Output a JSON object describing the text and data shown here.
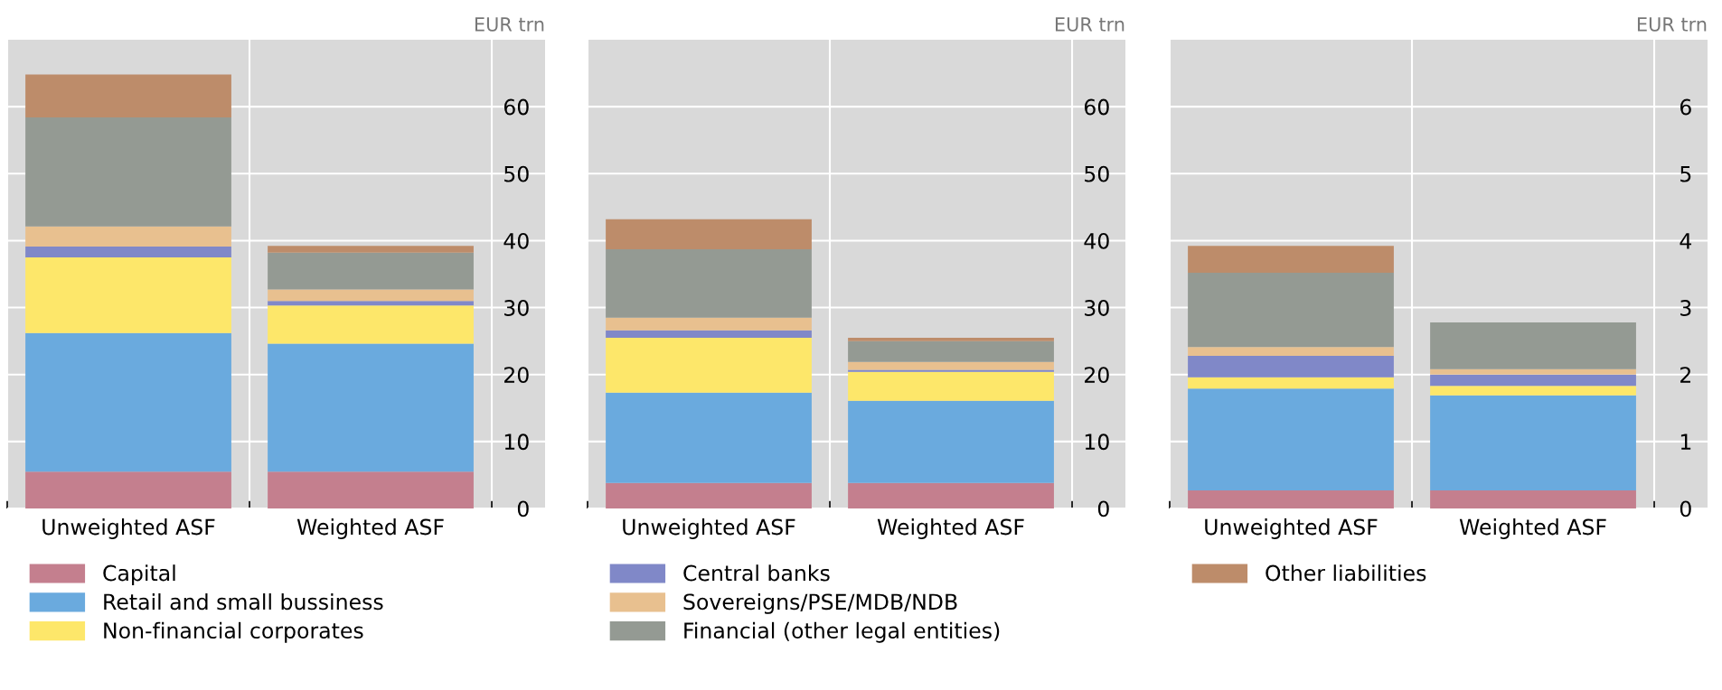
{
  "chart_data": [
    {
      "type": "bar",
      "stacked": true,
      "ylabel": "EUR trn",
      "categories": [
        "Unweighted ASF",
        "Weighted ASF"
      ],
      "ylim": [
        0,
        70
      ],
      "yticks": [
        0,
        10,
        20,
        30,
        40,
        50,
        60
      ],
      "grid": true,
      "legend": "bottom",
      "series": [
        {
          "name": "Capital",
          "color": "#c47f8e",
          "values": [
            5.5,
            5.5
          ]
        },
        {
          "name": "Retail and small bussiness",
          "color": "#6aaade",
          "values": [
            20.7,
            19.1
          ]
        },
        {
          "name": "Non-financial corporates",
          "color": "#fde76a",
          "values": [
            11.3,
            5.7
          ]
        },
        {
          "name": "Central banks",
          "color": "#8088c8",
          "values": [
            1.6,
            0.7
          ]
        },
        {
          "name": "Sovereigns/PSE/MDB/NDB",
          "color": "#e8c08f",
          "values": [
            3.0,
            1.7
          ]
        },
        {
          "name": "Financial (other legal entities)",
          "color": "#949a93",
          "values": [
            16.3,
            5.5
          ]
        },
        {
          "name": "Other liabilities",
          "color": "#bd8c6a",
          "values": [
            6.4,
            1.0
          ]
        }
      ]
    },
    {
      "type": "bar",
      "stacked": true,
      "ylabel": "EUR trn",
      "categories": [
        "Unweighted ASF",
        "Weighted ASF"
      ],
      "ylim": [
        0,
        70
      ],
      "yticks": [
        0,
        10,
        20,
        30,
        40,
        50,
        60
      ],
      "grid": true,
      "series": [
        {
          "color": "#c47f8e",
          "values": [
            3.8,
            3.8
          ]
        },
        {
          "color": "#6aaade",
          "values": [
            13.5,
            12.3
          ]
        },
        {
          "color": "#fde76a",
          "values": [
            8.2,
            4.3
          ]
        },
        {
          "color": "#8088c8",
          "values": [
            1.1,
            0.3
          ]
        },
        {
          "color": "#e8c08f",
          "values": [
            1.9,
            1.2
          ]
        },
        {
          "color": "#949a93",
          "values": [
            10.2,
            3.1
          ]
        },
        {
          "color": "#bd8c6a",
          "values": [
            4.5,
            0.5
          ]
        }
      ]
    },
    {
      "type": "bar",
      "stacked": true,
      "ylabel": "EUR trn",
      "categories": [
        "Unweighted ASF",
        "Weighted ASF"
      ],
      "ylim": [
        0,
        7
      ],
      "yticks": [
        0,
        1,
        2,
        3,
        4,
        5,
        6
      ],
      "grid": true,
      "series": [
        {
          "color": "#c47f8e",
          "values": [
            0.27,
            0.27
          ]
        },
        {
          "color": "#6aaade",
          "values": [
            1.52,
            1.42
          ]
        },
        {
          "color": "#fde76a",
          "values": [
            0.17,
            0.14
          ]
        },
        {
          "color": "#8088c8",
          "values": [
            0.32,
            0.17
          ]
        },
        {
          "color": "#e8c08f",
          "values": [
            0.13,
            0.08
          ]
        },
        {
          "color": "#949a93",
          "values": [
            1.11,
            0.7
          ]
        },
        {
          "color": "#bd8c6a",
          "values": [
            0.4,
            0
          ]
        }
      ]
    }
  ]
}
